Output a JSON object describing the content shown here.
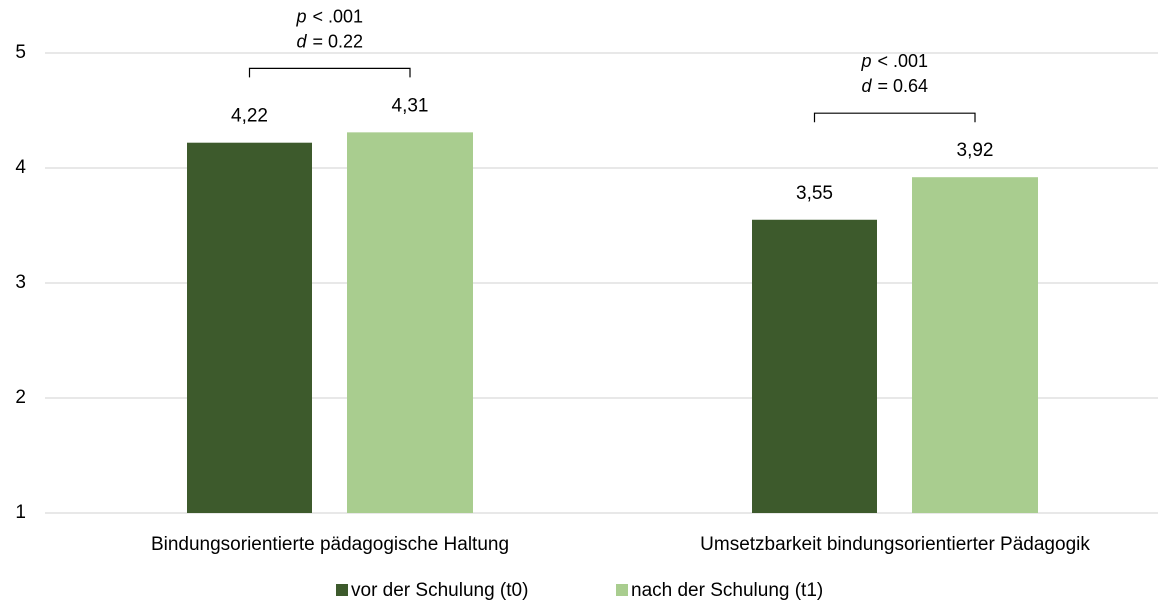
{
  "chart_data": {
    "type": "bar",
    "categories": [
      "Bindungsorientierte pädagogische Haltung",
      "Umsetzbarkeit bindungsorientierter Pädagogik"
    ],
    "series": [
      {
        "name": "vor der Schulung (t0)",
        "color": "#3d5a2c",
        "values": [
          4.22,
          3.55
        ],
        "value_labels": [
          "4,22",
          "3,55"
        ]
      },
      {
        "name": "nach der Schulung (t1)",
        "color": "#a9cd8f",
        "values": [
          4.31,
          3.92
        ],
        "value_labels": [
          "4,31",
          "3,92"
        ]
      }
    ],
    "annotations": [
      {
        "lines": [
          [
            "p",
            "< .001"
          ],
          [
            "d",
            "= 0.22"
          ]
        ]
      },
      {
        "lines": [
          [
            "p",
            "< .001"
          ],
          [
            "d",
            "= 0.64"
          ]
        ]
      }
    ],
    "ylim": [
      1,
      5
    ],
    "yticks": [
      1,
      2,
      3,
      4,
      5
    ],
    "grid": true,
    "legend": "bottom"
  }
}
